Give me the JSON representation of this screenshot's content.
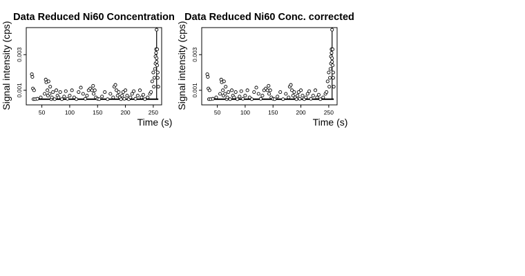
{
  "chart_data": [
    {
      "type": "scatter",
      "title": "Data Reduced Ni60 Concentration",
      "xlabel": "Time (s)",
      "ylabel": "Signal intensity (cps)",
      "xlim": [
        22,
        265
      ],
      "ylim": [
        0.00018,
        0.00452
      ],
      "x_ticks": [
        50,
        100,
        150,
        200,
        250
      ],
      "y_ticks": [
        0.001,
        0.003
      ],
      "x_tick_labels": [
        "50",
        "100",
        "150",
        "200",
        "250"
      ],
      "y_tick_labels": [
        "0.001",
        "0.003"
      ],
      "grid": false,
      "legend": "none",
      "vlines_x": [
        256
      ],
      "x": [
        32,
        33,
        34,
        35,
        36,
        38,
        42,
        48,
        55,
        57,
        58,
        60,
        61,
        62,
        64,
        65,
        67,
        68,
        70,
        73,
        76,
        78,
        80,
        83,
        86,
        90,
        93,
        96,
        100,
        104,
        108,
        112,
        116,
        120,
        124,
        128,
        131,
        134,
        137,
        140,
        142,
        143,
        145,
        147,
        150,
        153,
        158,
        163,
        168,
        173,
        178,
        180,
        182,
        184,
        186,
        188,
        190,
        192,
        194,
        196,
        198,
        200,
        203,
        206,
        209,
        212,
        215,
        218,
        222,
        226,
        229,
        232,
        235,
        240,
        244,
        246,
        248,
        250,
        251,
        252,
        253,
        254,
        254,
        255,
        255,
        256,
        256,
        256,
        257,
        257,
        258,
        258,
        259
      ],
      "y": [
        0.0019,
        0.00175,
        0.0011,
        0.0005,
        0.001,
        0.0005,
        0.00052,
        0.0006,
        0.0008,
        0.0016,
        0.00145,
        0.001,
        0.0007,
        0.0015,
        0.0008,
        0.0012,
        0.0005,
        0.0006,
        0.0009,
        0.0005,
        0.001,
        0.0007,
        0.0006,
        0.0009,
        0.0005,
        0.00065,
        0.00095,
        0.00052,
        0.0007,
        0.001,
        0.0006,
        0.0005,
        0.0009,
        0.00115,
        0.0008,
        0.00052,
        0.0007,
        0.001,
        0.0011,
        0.001,
        0.00125,
        0.0008,
        0.001,
        0.0006,
        0.00052,
        0.0005,
        0.00065,
        0.0009,
        0.0005,
        0.0008,
        0.0006,
        0.0012,
        0.0013,
        0.001,
        0.0007,
        0.0009,
        0.0006,
        0.0005,
        0.0007,
        0.0009,
        0.00052,
        0.001,
        0.0007,
        0.0005,
        0.0006,
        0.0008,
        0.00095,
        0.00052,
        0.0007,
        0.001,
        0.0006,
        0.00075,
        0.0005,
        0.0006,
        0.0008,
        0.0009,
        0.0015,
        0.002,
        0.0012,
        0.0017,
        0.0022,
        0.0025,
        0.0029,
        0.0033,
        0.0031,
        0.0028,
        0.0026,
        0.0044,
        0.0033,
        0.0024,
        0.002,
        0.0017,
        0.0012
      ]
    },
    {
      "type": "scatter",
      "title": "Data Reduced Ni60 Conc. corrected",
      "xlabel": "Time (s)",
      "ylabel": "Signal intensity (cps)",
      "xlim": [
        22,
        265
      ],
      "ylim": [
        0.00018,
        0.00452
      ],
      "x_ticks": [
        50,
        100,
        150,
        200,
        250
      ],
      "y_ticks": [
        0.001,
        0.003
      ],
      "x_tick_labels": [
        "50",
        "100",
        "150",
        "200",
        "250"
      ],
      "y_tick_labels": [
        "0.001",
        "0.003"
      ],
      "grid": false,
      "legend": "none",
      "vlines_x": [
        256
      ],
      "x": [
        32,
        33,
        34,
        35,
        36,
        38,
        42,
        48,
        55,
        57,
        58,
        60,
        61,
        62,
        64,
        65,
        67,
        68,
        70,
        73,
        76,
        78,
        80,
        83,
        86,
        90,
        93,
        96,
        100,
        104,
        108,
        112,
        116,
        120,
        124,
        128,
        131,
        134,
        137,
        140,
        142,
        143,
        145,
        147,
        150,
        153,
        158,
        163,
        168,
        173,
        178,
        180,
        182,
        184,
        186,
        188,
        190,
        192,
        194,
        196,
        198,
        200,
        203,
        206,
        209,
        212,
        215,
        218,
        222,
        226,
        229,
        232,
        235,
        240,
        244,
        246,
        248,
        250,
        251,
        252,
        253,
        254,
        254,
        255,
        255,
        256,
        256,
        256,
        257,
        257,
        258,
        258,
        259
      ],
      "y": [
        0.0019,
        0.00175,
        0.0011,
        0.0005,
        0.001,
        0.0005,
        0.00052,
        0.0006,
        0.0008,
        0.0016,
        0.00145,
        0.001,
        0.0007,
        0.0015,
        0.0008,
        0.0012,
        0.0005,
        0.0006,
        0.0009,
        0.0005,
        0.001,
        0.0007,
        0.0006,
        0.0009,
        0.0005,
        0.00065,
        0.00095,
        0.00052,
        0.0007,
        0.001,
        0.0006,
        0.0005,
        0.0009,
        0.00115,
        0.0008,
        0.00052,
        0.0007,
        0.001,
        0.0011,
        0.001,
        0.00125,
        0.0008,
        0.001,
        0.0006,
        0.00052,
        0.0005,
        0.00065,
        0.0009,
        0.0005,
        0.0008,
        0.0006,
        0.0012,
        0.0013,
        0.001,
        0.0007,
        0.0009,
        0.0006,
        0.0005,
        0.0007,
        0.0009,
        0.00052,
        0.001,
        0.0007,
        0.0005,
        0.0006,
        0.0008,
        0.00095,
        0.00052,
        0.0007,
        0.001,
        0.0006,
        0.00075,
        0.0005,
        0.0006,
        0.0008,
        0.0009,
        0.0015,
        0.002,
        0.0012,
        0.0017,
        0.0022,
        0.0025,
        0.0029,
        0.0033,
        0.0031,
        0.0028,
        0.0026,
        0.0044,
        0.0033,
        0.0024,
        0.002,
        0.0017,
        0.0012
      ]
    }
  ]
}
